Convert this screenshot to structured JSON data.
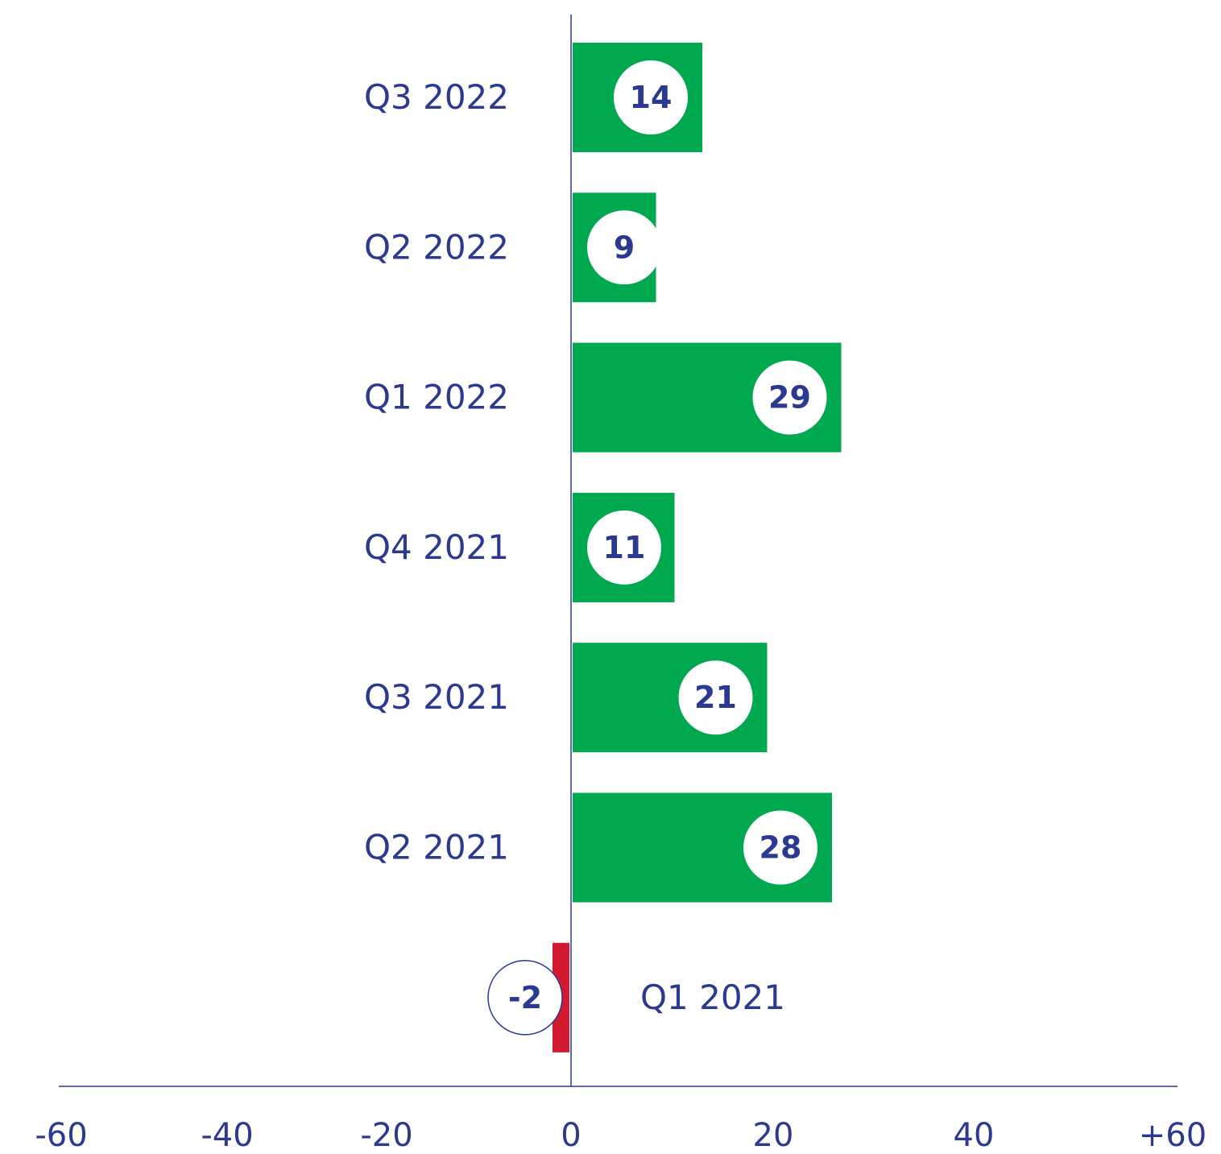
{
  "chart_data": {
    "type": "bar",
    "orientation": "horizontal",
    "categories": [
      "Q3 2022",
      "Q2 2022",
      "Q1 2022",
      "Q4 2021",
      "Q3 2021",
      "Q2 2021",
      "Q1 2021"
    ],
    "values": [
      14,
      9,
      29,
      11,
      21,
      28,
      -2
    ],
    "value_labels": [
      "14",
      "9",
      "29",
      "11",
      "21",
      "28",
      "-2"
    ],
    "xlim": [
      -60,
      60
    ],
    "xticks": [
      -60,
      -40,
      -20,
      0,
      20,
      40,
      60
    ],
    "xtick_labels": [
      "-60",
      "-40",
      "-20",
      "0",
      "20",
      "40",
      "+60"
    ],
    "grid": false,
    "colors": {
      "positive": "#00a84f",
      "negative": "#d2192f",
      "text": "#2b3990",
      "axis": "#2b3990"
    }
  }
}
